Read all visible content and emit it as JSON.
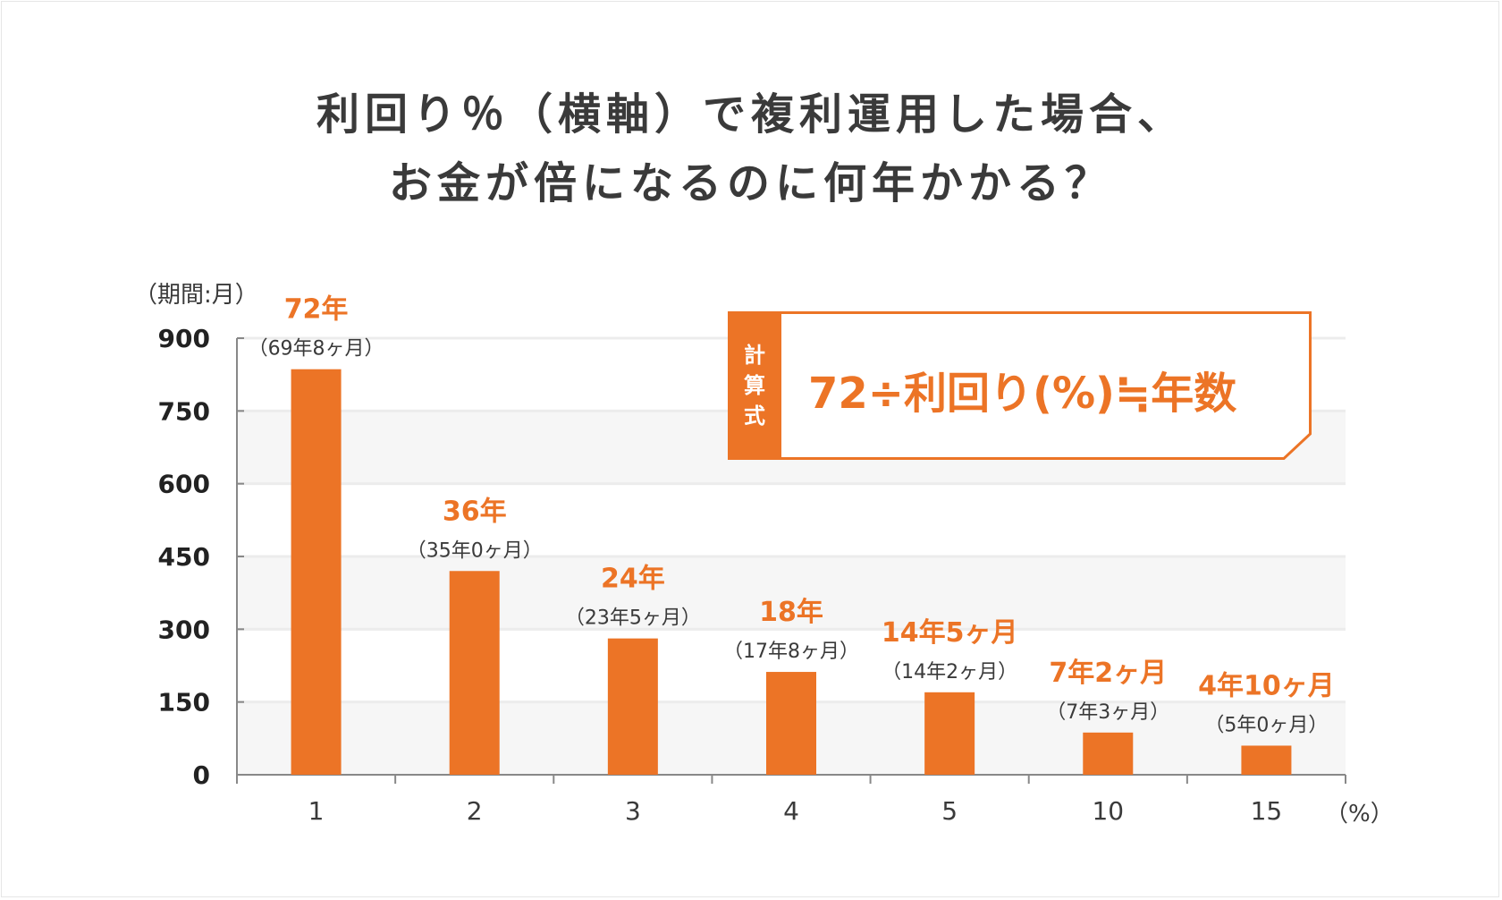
{
  "title": {
    "line1": "利回り％（横軸）で複利運用した場合、",
    "line2": "お金が倍になるのに何年かかる？"
  },
  "formula": {
    "tag_chars": [
      "計",
      "算",
      "式"
    ],
    "text": "72÷利回り(%)≒年数"
  },
  "colors": {
    "bar": "#ec7426",
    "text": "#3a3a3a",
    "axis": "#888888",
    "band": "#f6f6f6",
    "grid": "#ececec"
  },
  "chart_data": {
    "type": "bar",
    "title": "利回り％（横軸）で複利運用した場合、お金が倍になるのに何年かかる？",
    "ylabel": "（期間:月）",
    "xlabel": "（%）",
    "ylim": [
      0,
      900
    ],
    "yticks": [
      "0",
      "150",
      "300",
      "450",
      "600",
      "750",
      "900"
    ],
    "categories": [
      "1",
      "2",
      "3",
      "4",
      "5",
      "10",
      "15"
    ],
    "values": [
      836,
      420,
      281,
      212,
      170,
      87,
      60
    ],
    "labels_main": [
      "72年",
      "36年",
      "24年",
      "18年",
      "14年5ヶ月",
      "7年2ヶ月",
      "4年10ヶ月"
    ],
    "labels_sub": [
      "（69年8ヶ月）",
      "（35年0ヶ月）",
      "（23年5ヶ月）",
      "（17年8ヶ月）",
      "（14年2ヶ月）",
      "（7年3ヶ月）",
      "（5年0ヶ月）"
    ],
    "grid": true
  }
}
